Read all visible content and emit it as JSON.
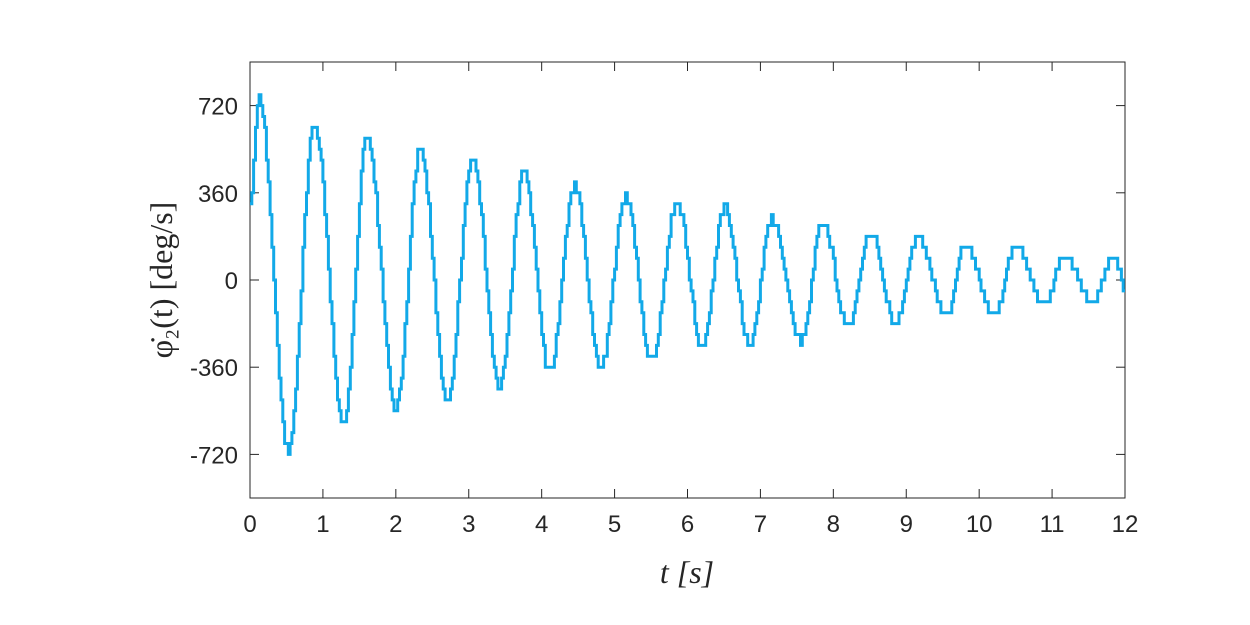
{
  "chart_data": {
    "type": "line",
    "title": "",
    "xlabel": "t [s]",
    "ylabel": "φ̇₂(t) [deg/s]",
    "xlim": [
      0,
      12
    ],
    "ylim": [
      -900,
      900
    ],
    "xticks": [
      0,
      1,
      2,
      3,
      4,
      5,
      6,
      7,
      8,
      9,
      10,
      11,
      12
    ],
    "yticks": [
      -720,
      -360,
      0,
      360,
      720
    ],
    "grid": false,
    "legend": "none",
    "line_color": "#12A9E8",
    "step_quantized": true,
    "series": [
      {
        "x": [
          0,
          0.12,
          0.52,
          0.88,
          1.28,
          1.6,
          2.0,
          2.33,
          2.7,
          3.05,
          3.42,
          3.75,
          4.1,
          4.45,
          4.8,
          5.15,
          5.5,
          5.85,
          6.2,
          6.5,
          6.85,
          7.15,
          7.55,
          7.85,
          8.2,
          8.5,
          8.85,
          9.15,
          9.55,
          9.8,
          10.2,
          10.5,
          10.9,
          11.15,
          11.55,
          11.85,
          12
        ],
        "y": [
          330,
          750,
          -700,
          640,
          -600,
          590,
          -530,
          540,
          -490,
          490,
          -440,
          440,
          -380,
          390,
          -370,
          340,
          -330,
          320,
          -280,
          300,
          -270,
          250,
          -250,
          240,
          -200,
          200,
          -180,
          170,
          -150,
          150,
          -150,
          140,
          -110,
          100,
          -90,
          100,
          -50
        ]
      }
    ]
  }
}
